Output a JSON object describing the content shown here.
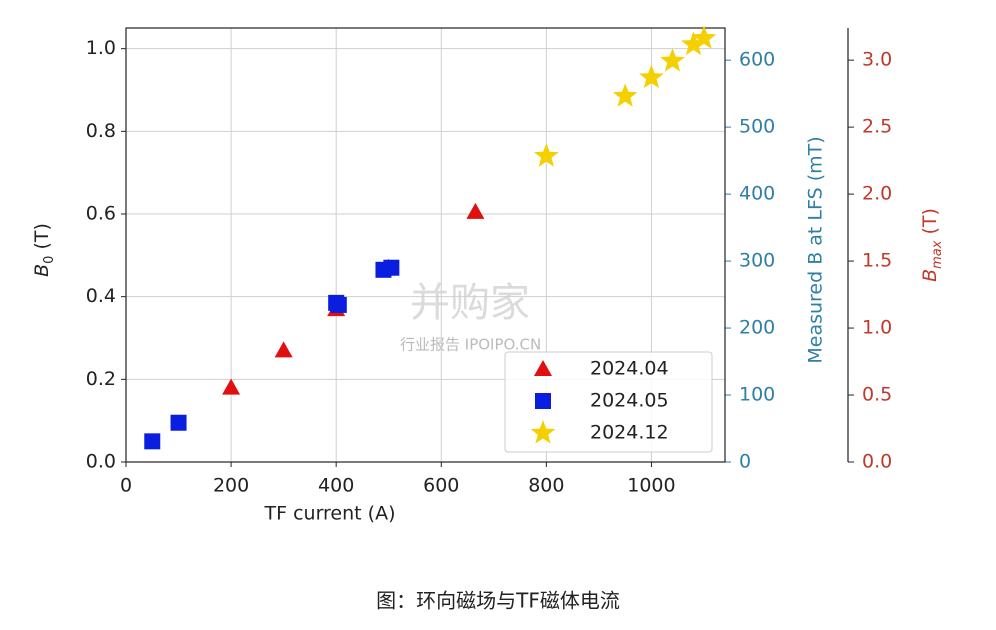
{
  "chart_data": {
    "type": "scatter",
    "xlabel": "TF current (A)",
    "ylabel": [
      "B",
      "0",
      " (T)"
    ],
    "y2label": "Measured B at LFS (mT)",
    "y3label": [
      "B",
      "max",
      " (T)"
    ],
    "xlim": [
      0,
      1140
    ],
    "xticks": [
      0,
      200,
      400,
      600,
      800,
      1000
    ],
    "ylim": [
      0,
      1.05
    ],
    "yticks": [
      {
        "value": 0,
        "label": "0.0"
      },
      0.2,
      0.4,
      0.6,
      0.8,
      {
        "value": 1,
        "label": "1.0"
      }
    ],
    "y2lim": [
      0,
      648
    ],
    "y2ticks": [
      0,
      100,
      200,
      300,
      400,
      500,
      600
    ],
    "y2color": "#2f7fa6",
    "y3lim": [
      0,
      3.24
    ],
    "y3ticks": [
      {
        "value": 0,
        "label": "0.0"
      },
      0.5,
      {
        "value": 1,
        "label": "1.0"
      },
      1.5,
      {
        "value": 2,
        "label": "2.0"
      },
      2.5,
      {
        "value": 3,
        "label": "3.0"
      }
    ],
    "y3color": "#c0392b",
    "grid": true,
    "legend": "lower right",
    "series": [
      {
        "name": "2024.04",
        "color": "#e01010",
        "marker": "triangle",
        "x": [
          200,
          300,
          400,
          500,
          665
        ],
        "values": [
          0.18,
          0.27,
          0.37,
          0.47,
          0.605
        ]
      },
      {
        "name": "2024.05",
        "color": "#0a1ee0",
        "marker": "square",
        "x": [
          50,
          100,
          400,
          405,
          490,
          505
        ],
        "values": [
          0.05,
          0.095,
          0.385,
          0.38,
          0.465,
          0.47
        ]
      },
      {
        "name": "2024.12",
        "color": "#f5d000",
        "marker": "star",
        "x": [
          800,
          950,
          1000,
          1040,
          1080,
          1100
        ],
        "values": [
          0.74,
          0.885,
          0.93,
          0.97,
          1.01,
          1.025
        ]
      }
    ]
  },
  "watermark": [
    "并购家",
    "行业报告 IPOIPO.CN"
  ],
  "caption": "图：环向磁场与TF磁体电流"
}
